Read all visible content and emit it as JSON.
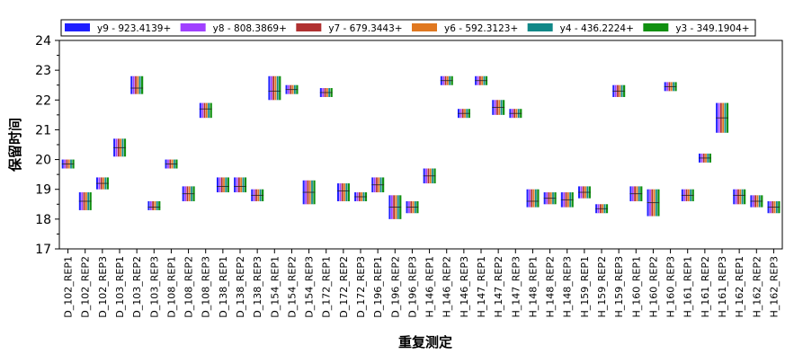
{
  "chart_data": {
    "type": "box",
    "title": "",
    "xlabel": "重复测定",
    "ylabel": "保留时间",
    "ylim": [
      17,
      24
    ],
    "yticks": [
      17,
      18,
      19,
      20,
      21,
      22,
      23,
      24
    ],
    "grid": false,
    "legend_position": "top",
    "series": [
      {
        "name": "y9 - 923.4139+",
        "color": "#1f1fff"
      },
      {
        "name": "y8 - 808.3869+",
        "color": "#a040ff"
      },
      {
        "name": "y7 - 679.3443+",
        "color": "#b03030"
      },
      {
        "name": "y6 - 592.3123+",
        "color": "#e07820"
      },
      {
        "name": "y4 - 436.2224+",
        "color": "#108888"
      },
      {
        "name": "y3 - 349.1904+",
        "color": "#109010"
      }
    ],
    "categories": [
      "D_102_REP1",
      "D_102_REP2",
      "D_102_REP3",
      "D_103_REP1",
      "D_103_REP2",
      "D_103_REP3",
      "D_108_REP1",
      "D_108_REP2",
      "D_108_REP3",
      "D_138_REP1",
      "D_138_REP2",
      "D_138_REP3",
      "D_154_REP1",
      "D_154_REP2",
      "D_154_REP3",
      "D_172_REP1",
      "D_172_REP2",
      "D_172_REP3",
      "D_196_REP1",
      "D_196_REP2",
      "D_196_REP3",
      "H_146_REP1",
      "H_146_REP2",
      "H_146_REP3",
      "H_147_REP1",
      "H_147_REP2",
      "H_147_REP3",
      "H_148_REP1",
      "H_148_REP2",
      "H_148_REP3",
      "H_159_REP1",
      "H_159_REP2",
      "H_159_REP3",
      "H_160_REP1",
      "H_160_REP2",
      "H_160_REP3",
      "H_161_REP1",
      "H_161_REP2",
      "H_161_REP3",
      "H_162_REP1",
      "H_162_REP2",
      "H_162_REP3"
    ],
    "ranges": [
      [
        19.7,
        20.0
      ],
      [
        18.3,
        18.9
      ],
      [
        19.0,
        19.4
      ],
      [
        20.1,
        20.7
      ],
      [
        22.2,
        22.8
      ],
      [
        18.3,
        18.6
      ],
      [
        19.7,
        20.0
      ],
      [
        18.6,
        19.1
      ],
      [
        21.4,
        21.9
      ],
      [
        18.9,
        19.4
      ],
      [
        18.9,
        19.4
      ],
      [
        18.6,
        19.0
      ],
      [
        22.0,
        22.8
      ],
      [
        22.2,
        22.5
      ],
      [
        18.5,
        19.3
      ],
      [
        22.1,
        22.4
      ],
      [
        18.6,
        19.2
      ],
      [
        18.6,
        18.9
      ],
      [
        18.9,
        19.4
      ],
      [
        18.0,
        18.8
      ],
      [
        18.2,
        18.6
      ],
      [
        19.2,
        19.7
      ],
      [
        22.5,
        22.8
      ],
      [
        21.4,
        21.7
      ],
      [
        22.5,
        22.8
      ],
      [
        21.5,
        22.0
      ],
      [
        21.4,
        21.7
      ],
      [
        18.4,
        19.0
      ],
      [
        18.5,
        18.9
      ],
      [
        18.4,
        18.9
      ],
      [
        18.7,
        19.1
      ],
      [
        18.2,
        18.5
      ],
      [
        22.1,
        22.5
      ],
      [
        18.6,
        19.1
      ],
      [
        18.1,
        19.0
      ],
      [
        22.3,
        22.6
      ],
      [
        18.6,
        19.0
      ],
      [
        19.9,
        20.2
      ],
      [
        20.9,
        21.9
      ],
      [
        18.5,
        19.0
      ],
      [
        18.4,
        18.8
      ],
      [
        18.2,
        18.6
      ]
    ],
    "medians": [
      19.85,
      18.6,
      19.2,
      20.4,
      22.4,
      18.4,
      19.85,
      18.85,
      21.7,
      19.1,
      19.1,
      18.8,
      22.3,
      22.35,
      18.9,
      22.25,
      18.95,
      18.75,
      19.15,
      18.4,
      18.4,
      19.45,
      22.65,
      21.55,
      22.65,
      21.75,
      21.55,
      18.6,
      18.7,
      18.65,
      18.9,
      18.35,
      22.3,
      18.85,
      18.55,
      22.45,
      18.8,
      20.05,
      21.4,
      18.8,
      18.6,
      18.4
    ]
  }
}
